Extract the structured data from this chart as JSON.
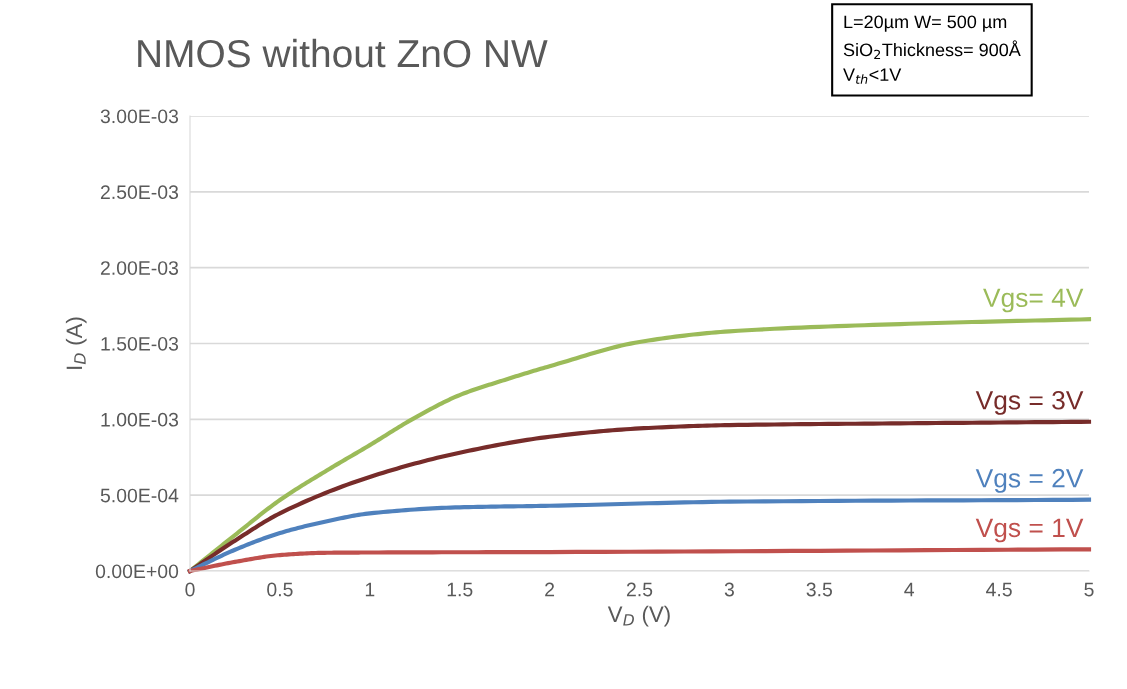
{
  "chart_data": {
    "type": "line",
    "title": "NMOS without ZnO NW",
    "xlabel": "V$_{D}$ (V)",
    "ylabel": "I$_{D}$ (A)",
    "annotations": [
      "L=20µm W= 500 µm\nSiO$_{2}$Thickness= 900Å\nV$_{th}$<1V"
    ],
    "xlim": [
      0,
      5
    ],
    "xticks": [
      0,
      0.5,
      1,
      1.5,
      2,
      2.5,
      3,
      3.5,
      4,
      4.5,
      5
    ],
    "ylim": [
      0,
      0.003
    ],
    "yticks": [
      {
        "value": 0,
        "label": "0.00E+00"
      },
      {
        "value": 0.0005,
        "label": "5.00E-04"
      },
      {
        "value": 0.001,
        "label": "1.00E-03"
      },
      {
        "value": 0.0015,
        "label": "1.50E-03"
      },
      {
        "value": 0.002,
        "label": "2.00E-03"
      },
      {
        "value": 0.0025,
        "label": "2.50E-03"
      },
      {
        "value": 0.003,
        "label": "3.00E-03"
      }
    ],
    "grid": "y",
    "legend": false,
    "marker": "none",
    "line_style": "solid",
    "series": [
      {
        "name": "Vgs= 4V",
        "color": "#9bbb59",
        "x": [
          0,
          0.25,
          0.5,
          0.75,
          1,
          1.25,
          1.5,
          1.75,
          2,
          2.5,
          3,
          4,
          5
        ],
        "values": [
          0,
          0.000237,
          0.000468,
          0.000655,
          0.00083,
          0.00101,
          0.00116,
          0.00126,
          0.00135,
          0.00151,
          0.00158,
          0.00163,
          0.00166
        ]
      },
      {
        "name": "Vgs = 3V",
        "color": "#772c2a",
        "x": [
          0,
          0.25,
          0.5,
          1,
          1.5,
          2,
          2.5,
          3,
          4,
          5
        ],
        "values": [
          0,
          0.0002,
          0.00038,
          0.00062,
          0.00078,
          0.000885,
          0.00094,
          0.000962,
          0.000974,
          0.000984
        ]
      },
      {
        "name": "Vgs = 2V",
        "color": "#4f81bd",
        "x": [
          0,
          0.25,
          0.5,
          0.75,
          1,
          1.5,
          2,
          3,
          5
        ],
        "values": [
          0,
          0.00014,
          0.00025,
          0.000325,
          0.00038,
          0.00042,
          0.00043,
          0.000457,
          0.00047
        ]
      },
      {
        "name": "Vgs = 1V",
        "color": "#c0504d",
        "x": [
          0,
          0.25,
          0.5,
          0.75,
          1,
          2,
          5
        ],
        "values": [
          0,
          6e-05,
          0.000105,
          0.00012,
          0.000122,
          0.000125,
          0.000143
        ]
      }
    ]
  }
}
